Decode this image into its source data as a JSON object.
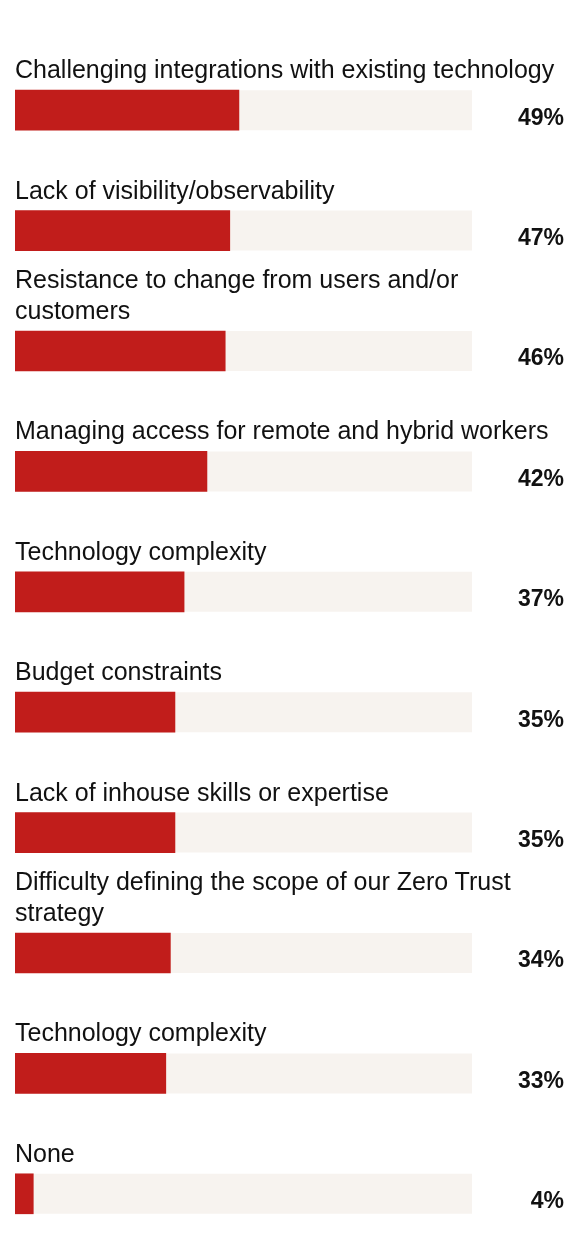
{
  "chart_data": {
    "type": "bar",
    "orientation": "horizontal",
    "tick_labels": "y",
    "xlim": [
      0,
      100
    ],
    "categories": [
      "Challenging integrations with existing technology",
      "Lack of visibility/observability",
      "Resistance to change from users and/or customers",
      "Managing access for remote and hybrid workers",
      "Technology complexity",
      "Budget constraints",
      "Lack of inhouse skills or expertise",
      "Difficulty defining the scope of our Zero Trust strategy",
      "Technology complexity",
      "None"
    ],
    "series": [
      {
        "color": "#c11d1b",
        "values": [
          49,
          47,
          46,
          42,
          37,
          35,
          35,
          34,
          33,
          4
        ],
        "value_labels": [
          "49%",
          "47%",
          "46%",
          "42%",
          "37%",
          "35%",
          "35%",
          "34%",
          "33%",
          "4%"
        ]
      }
    ]
  }
}
